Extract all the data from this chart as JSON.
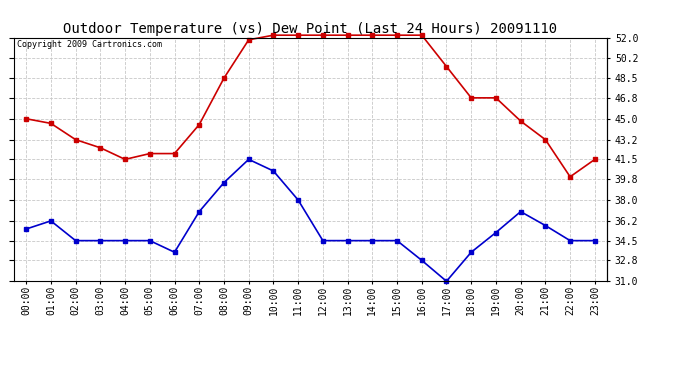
{
  "title": "Outdoor Temperature (vs) Dew Point (Last 24 Hours) 20091110",
  "copyright": "Copyright 2009 Cartronics.com",
  "hours": [
    "00:00",
    "01:00",
    "02:00",
    "03:00",
    "04:00",
    "05:00",
    "06:00",
    "07:00",
    "08:00",
    "09:00",
    "10:00",
    "11:00",
    "12:00",
    "13:00",
    "14:00",
    "15:00",
    "16:00",
    "17:00",
    "18:00",
    "19:00",
    "20:00",
    "21:00",
    "22:00",
    "23:00"
  ],
  "temp": [
    45.0,
    44.6,
    43.2,
    42.5,
    41.5,
    42.0,
    42.0,
    44.5,
    48.5,
    51.8,
    52.2,
    52.2,
    52.2,
    52.2,
    52.2,
    52.2,
    52.2,
    49.5,
    46.8,
    46.8,
    44.8,
    43.2,
    40.0,
    41.5
  ],
  "dew": [
    35.5,
    36.2,
    34.5,
    34.5,
    34.5,
    34.5,
    33.5,
    37.0,
    39.5,
    41.5,
    40.5,
    38.0,
    34.5,
    34.5,
    34.5,
    34.5,
    32.8,
    31.0,
    33.5,
    35.2,
    37.0,
    35.8,
    34.5,
    34.5
  ],
  "temp_color": "#cc0000",
  "dew_color": "#0000cc",
  "bg_color": "#ffffff",
  "plot_bg_color": "#ffffff",
  "grid_color": "#c8c8c8",
  "ylim_min": 31.0,
  "ylim_max": 52.0,
  "yticks": [
    31.0,
    32.8,
    34.5,
    36.2,
    38.0,
    39.8,
    41.5,
    43.2,
    45.0,
    46.8,
    48.5,
    50.2,
    52.0
  ],
  "title_fontsize": 10,
  "copyright_fontsize": 6,
  "tick_fontsize": 7,
  "marker": "s",
  "markersize": 2.5,
  "linewidth": 1.2
}
